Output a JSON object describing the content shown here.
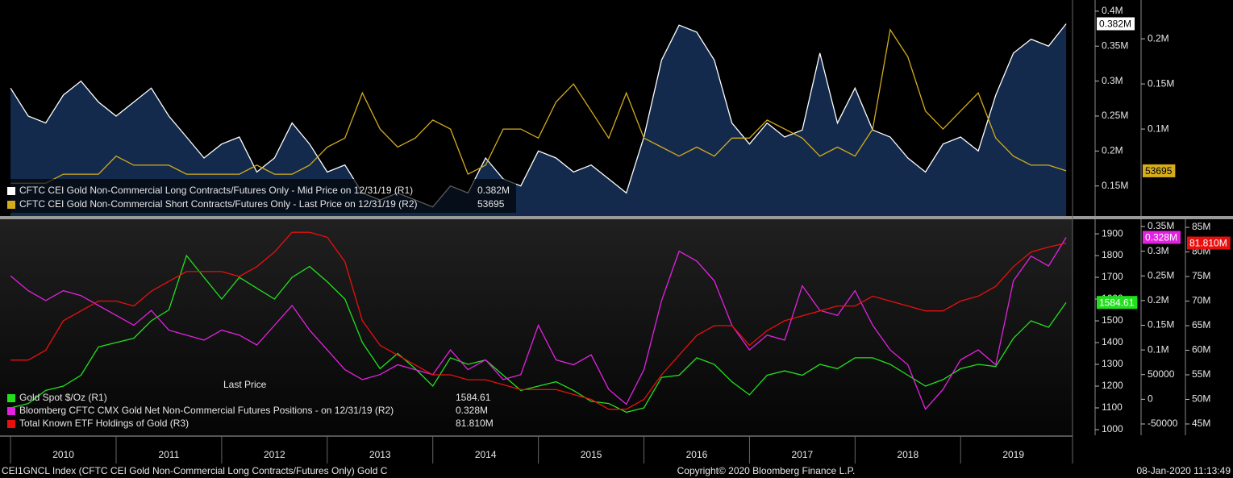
{
  "chart_data": [
    {
      "type": "line",
      "xlim": [
        2009.9,
        2020.06
      ],
      "x": [
        2010,
        2010.167,
        2010.333,
        2010.5,
        2010.667,
        2010.833,
        2011,
        2011.167,
        2011.333,
        2011.5,
        2011.667,
        2011.833,
        2012,
        2012.167,
        2012.333,
        2012.5,
        2012.667,
        2012.833,
        2013,
        2013.167,
        2013.333,
        2013.5,
        2013.667,
        2013.833,
        2014,
        2014.167,
        2014.333,
        2014.5,
        2014.667,
        2014.833,
        2015,
        2015.167,
        2015.333,
        2015.5,
        2015.667,
        2015.833,
        2016,
        2016.167,
        2016.333,
        2016.5,
        2016.667,
        2016.833,
        2017,
        2017.167,
        2017.333,
        2017.5,
        2017.667,
        2017.833,
        2018,
        2018.167,
        2018.333,
        2018.5,
        2018.667,
        2018.833,
        2019,
        2019.167,
        2019.333,
        2019.5,
        2019.667,
        2019.833,
        2020
      ],
      "ylim": [
        107000,
        416000
      ],
      "yticks": [
        {
          "value": 150000,
          "label": "0.15M"
        },
        {
          "value": 200000,
          "label": "0.2M"
        },
        {
          "value": 250000,
          "label": "0.25M"
        },
        {
          "value": 300000,
          "label": "0.3M"
        },
        {
          "value": 350000,
          "label": "0.35M"
        },
        {
          "value": 400000,
          "label": "0.4M"
        }
      ],
      "y2lim": [
        3600,
        243000
      ],
      "y2ticks": [
        {
          "value": 100000,
          "label": "0.1M"
        },
        {
          "value": 150000,
          "label": "0.15M"
        },
        {
          "value": 200000,
          "label": "0.2M"
        }
      ],
      "series": [
        {
          "name": "CFTC CEI Gold Non-Commercial Long Contracts/Futures Only - Mid Price on 12/31/19 (R1)",
          "color": "#ffffff",
          "fill": "#132a4c",
          "axis": "y",
          "last_label": "0.382M",
          "values": [
            290000,
            250000,
            240000,
            280000,
            300000,
            270000,
            250000,
            270000,
            290000,
            250000,
            220000,
            190000,
            210000,
            220000,
            170000,
            190000,
            240000,
            210000,
            170000,
            180000,
            140000,
            130000,
            140000,
            130000,
            120000,
            150000,
            140000,
            190000,
            160000,
            150000,
            200000,
            190000,
            170000,
            180000,
            160000,
            140000,
            220000,
            330000,
            380000,
            370000,
            330000,
            240000,
            210000,
            240000,
            220000,
            230000,
            340000,
            240000,
            290000,
            230000,
            220000,
            190000,
            170000,
            210000,
            220000,
            200000,
            280000,
            340000,
            360000,
            350000,
            382000
          ]
        },
        {
          "name": "CFTC CEI Gold Non-Commercial Short Contracts/Futures Only - Last Price on 12/31/19 (R2)",
          "color": "#d4ac1c",
          "axis": "y2",
          "last_label": "53695",
          "values": [
            40000,
            40000,
            40000,
            50000,
            50000,
            50000,
            70000,
            60000,
            60000,
            60000,
            50000,
            50000,
            50000,
            50000,
            60000,
            50000,
            50000,
            60000,
            80000,
            90000,
            140000,
            100000,
            80000,
            90000,
            110000,
            100000,
            50000,
            60000,
            100000,
            100000,
            90000,
            130000,
            150000,
            120000,
            90000,
            140000,
            90000,
            80000,
            70000,
            80000,
            70000,
            90000,
            90000,
            110000,
            100000,
            90000,
            70000,
            80000,
            70000,
            100000,
            210000,
            180000,
            120000,
            100000,
            120000,
            140000,
            90000,
            70000,
            60000,
            60000,
            53695
          ]
        }
      ]
    },
    {
      "type": "line",
      "xlim": [
        2009.9,
        2020.06
      ],
      "xticks": [
        2010,
        2011,
        2012,
        2013,
        2014,
        2015,
        2016,
        2017,
        2018,
        2019
      ],
      "x": [
        2010,
        2010.167,
        2010.333,
        2010.5,
        2010.667,
        2010.833,
        2011,
        2011.167,
        2011.333,
        2011.5,
        2011.667,
        2011.833,
        2012,
        2012.167,
        2012.333,
        2012.5,
        2012.667,
        2012.833,
        2013,
        2013.167,
        2013.333,
        2013.5,
        2013.667,
        2013.833,
        2014,
        2014.167,
        2014.333,
        2014.5,
        2014.667,
        2014.833,
        2015,
        2015.167,
        2015.333,
        2015.5,
        2015.667,
        2015.833,
        2016,
        2016.167,
        2016.333,
        2016.5,
        2016.667,
        2016.833,
        2017,
        2017.167,
        2017.333,
        2017.5,
        2017.667,
        2017.833,
        2018,
        2018.167,
        2018.333,
        2018.5,
        2018.667,
        2018.833,
        2019,
        2019.167,
        2019.333,
        2019.5,
        2019.667,
        2019.833,
        2020
      ],
      "legend_title": "Last Price",
      "ylim": [
        974,
        1967
      ],
      "yticks": [
        1000,
        1100,
        1200,
        1300,
        1400,
        1500,
        1600,
        1700,
        1800,
        1900
      ],
      "y2lim": [
        -72900,
        364700
      ],
      "y2ticks": [
        -50000,
        0,
        50000,
        {
          "value": 100000,
          "label": "0.1M"
        },
        {
          "value": 150000,
          "label": "0.15M"
        },
        {
          "value": 200000,
          "label": "0.2M"
        },
        {
          "value": 250000,
          "label": "0.25M"
        },
        {
          "value": 300000,
          "label": "0.3M"
        },
        {
          "value": 350000,
          "label": "0.35M"
        }
      ],
      "y3lim": [
        42700000,
        86650000
      ],
      "y3ticks": [
        {
          "value": 45000000,
          "label": "45M"
        },
        {
          "value": 50000000,
          "label": "50M"
        },
        {
          "value": 55000000,
          "label": "55M"
        },
        {
          "value": 60000000,
          "label": "60M"
        },
        {
          "value": 65000000,
          "label": "65M"
        },
        {
          "value": 70000000,
          "label": "70M"
        },
        {
          "value": 75000000,
          "label": "75M"
        },
        {
          "value": 80000000,
          "label": "80M"
        },
        {
          "value": 85000000,
          "label": "85M"
        }
      ],
      "series": [
        {
          "name": "Gold Spot $/Oz  (R1)",
          "color": "#22e01e",
          "axis": "y",
          "last_label": "1584.61",
          "values": [
            1100,
            1120,
            1180,
            1200,
            1250,
            1380,
            1400,
            1420,
            1500,
            1550,
            1800,
            1700,
            1600,
            1700,
            1650,
            1600,
            1700,
            1750,
            1680,
            1600,
            1400,
            1280,
            1350,
            1280,
            1200,
            1330,
            1300,
            1320,
            1250,
            1180,
            1200,
            1220,
            1180,
            1130,
            1120,
            1080,
            1100,
            1240,
            1250,
            1330,
            1300,
            1220,
            1160,
            1250,
            1270,
            1250,
            1300,
            1280,
            1330,
            1330,
            1300,
            1250,
            1200,
            1230,
            1280,
            1300,
            1290,
            1420,
            1500,
            1470,
            1584.61
          ]
        },
        {
          "name": "Bloomberg CFTC CMX Gold Net Non-Commercial Futures Positions -  on 12/31/19  (R2)",
          "color": "#e222e0",
          "axis": "y2",
          "last_label": "0.328M",
          "values": [
            250000,
            220000,
            200000,
            220000,
            210000,
            190000,
            170000,
            150000,
            180000,
            140000,
            130000,
            120000,
            140000,
            130000,
            110000,
            150000,
            190000,
            140000,
            100000,
            60000,
            40000,
            50000,
            70000,
            60000,
            50000,
            100000,
            60000,
            80000,
            40000,
            50000,
            150000,
            80000,
            70000,
            90000,
            20000,
            -10000,
            60000,
            200000,
            300000,
            280000,
            240000,
            150000,
            100000,
            130000,
            120000,
            230000,
            180000,
            170000,
            220000,
            150000,
            100000,
            70000,
            -20000,
            20000,
            80000,
            100000,
            70000,
            240000,
            290000,
            270000,
            328000
          ]
        },
        {
          "name": "Total Known ETF Holdings of Gold  (R3)",
          "color": "#e8100e",
          "axis": "y3",
          "last_label": "81.810M",
          "values": [
            58000000,
            58000000,
            60000000,
            66000000,
            68000000,
            70000000,
            70000000,
            69000000,
            72000000,
            74000000,
            76000000,
            76000000,
            76000000,
            75000000,
            77000000,
            80000000,
            84000000,
            84000000,
            83000000,
            78000000,
            66000000,
            61000000,
            59000000,
            57000000,
            55000000,
            55000000,
            54000000,
            54000000,
            53000000,
            52000000,
            52000000,
            52000000,
            51000000,
            50000000,
            48000000,
            48000000,
            50000000,
            55000000,
            59000000,
            63000000,
            65000000,
            65000000,
            61000000,
            64000000,
            66000000,
            67000000,
            68000000,
            69000000,
            69000000,
            71000000,
            70000000,
            69000000,
            68000000,
            68000000,
            70000000,
            71000000,
            73000000,
            77000000,
            80000000,
            81000000,
            81810000
          ]
        }
      ]
    }
  ],
  "footer": {
    "left": "CEI1GNCL Index (CFTC CEI Gold Non-Commercial Long Contracts/Futures Only) Gold C",
    "center": "Copyright© 2020 Bloomberg Finance L.P.",
    "right": "08-Jan-2020 11:13:49"
  }
}
